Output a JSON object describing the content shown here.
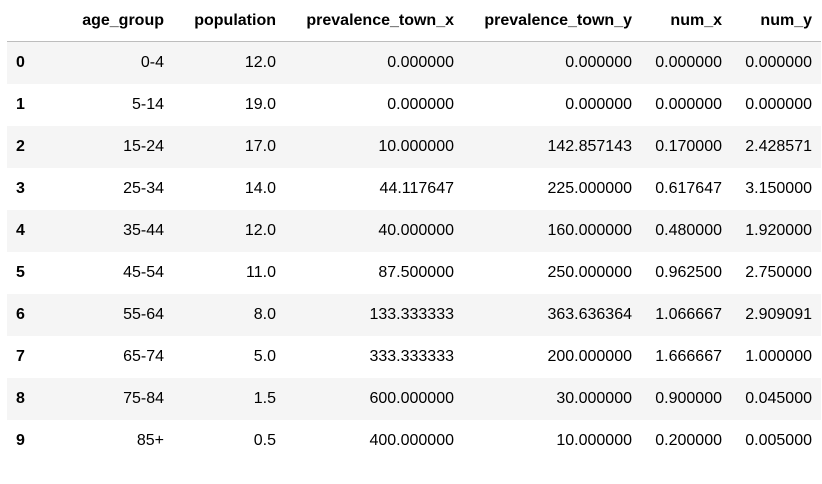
{
  "table": {
    "index_header": "",
    "columns": [
      "age_group",
      "population",
      "prevalence_town_x",
      "prevalence_town_y",
      "num_x",
      "num_y"
    ],
    "rows": [
      {
        "index": "0",
        "cells": [
          "0-4",
          "12.0",
          "0.000000",
          "0.000000",
          "0.000000",
          "0.000000"
        ]
      },
      {
        "index": "1",
        "cells": [
          "5-14",
          "19.0",
          "0.000000",
          "0.000000",
          "0.000000",
          "0.000000"
        ]
      },
      {
        "index": "2",
        "cells": [
          "15-24",
          "17.0",
          "10.000000",
          "142.857143",
          "0.170000",
          "2.428571"
        ]
      },
      {
        "index": "3",
        "cells": [
          "25-34",
          "14.0",
          "44.117647",
          "225.000000",
          "0.617647",
          "3.150000"
        ]
      },
      {
        "index": "4",
        "cells": [
          "35-44",
          "12.0",
          "40.000000",
          "160.000000",
          "0.480000",
          "1.920000"
        ]
      },
      {
        "index": "5",
        "cells": [
          "45-54",
          "11.0",
          "87.500000",
          "250.000000",
          "0.962500",
          "2.750000"
        ]
      },
      {
        "index": "6",
        "cells": [
          "55-64",
          "8.0",
          "133.333333",
          "363.636364",
          "1.066667",
          "2.909091"
        ]
      },
      {
        "index": "7",
        "cells": [
          "65-74",
          "5.0",
          "333.333333",
          "200.000000",
          "1.666667",
          "1.000000"
        ]
      },
      {
        "index": "8",
        "cells": [
          "75-84",
          "1.5",
          "600.000000",
          "30.000000",
          "0.900000",
          "0.045000"
        ]
      },
      {
        "index": "9",
        "cells": [
          "85+",
          "0.5",
          "400.000000",
          "10.000000",
          "0.200000",
          "0.005000"
        ]
      }
    ]
  }
}
